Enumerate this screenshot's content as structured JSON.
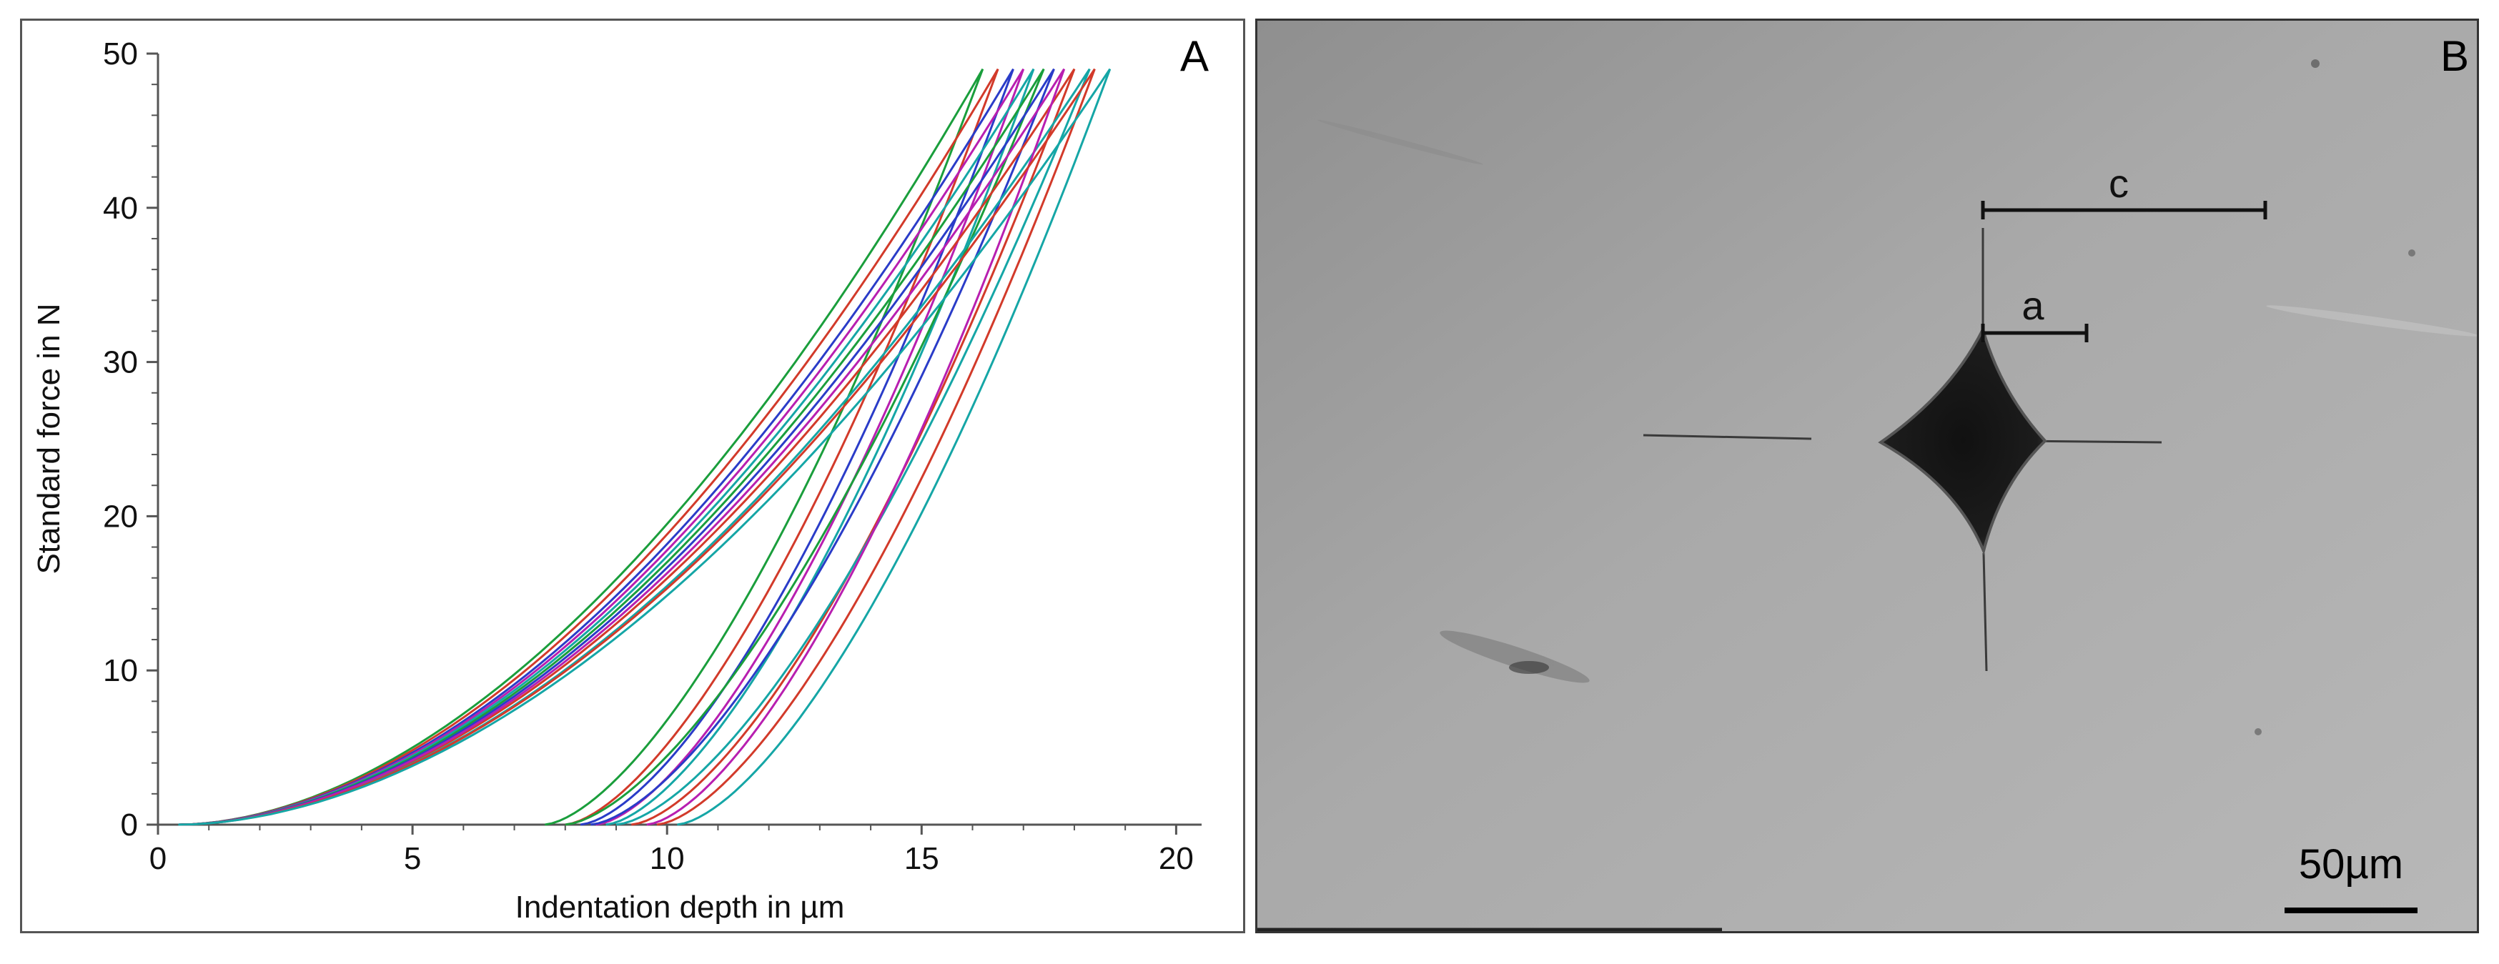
{
  "panels": {
    "a_letter": "A",
    "b_letter": "B"
  },
  "chart_data": {
    "type": "line",
    "xlabel": "Indentation depth in µm",
    "ylabel": "Standard force in N",
    "xlim": [
      0,
      20.5
    ],
    "ylim": [
      0,
      50
    ],
    "xticks": [
      0,
      5,
      10,
      15,
      20
    ],
    "yticks": [
      0,
      10,
      20,
      30,
      40,
      50
    ],
    "grid": false,
    "series": [
      {
        "color": "#1a9e3c",
        "loading_end": 16.2,
        "unloading_end": 7.6,
        "max_force": 49
      },
      {
        "color": "#d23a2a",
        "loading_end": 16.5,
        "unloading_end": 8.0,
        "max_force": 49
      },
      {
        "color": "#2a3cc8",
        "loading_end": 16.8,
        "unloading_end": 8.3,
        "max_force": 49
      },
      {
        "color": "#b81fb0",
        "loading_end": 17.0,
        "unloading_end": 8.6,
        "max_force": 49
      },
      {
        "color": "#15a6a6",
        "loading_end": 17.2,
        "unloading_end": 8.8,
        "max_force": 49
      },
      {
        "color": "#1a9e3c",
        "loading_end": 17.4,
        "unloading_end": 8.0,
        "max_force": 49
      },
      {
        "color": "#2a3cc8",
        "loading_end": 17.6,
        "unloading_end": 8.5,
        "max_force": 49
      },
      {
        "color": "#d23a2a",
        "loading_end": 18.0,
        "unloading_end": 9.3,
        "max_force": 49
      },
      {
        "color": "#15a6a6",
        "loading_end": 18.3,
        "unloading_end": 9.0,
        "max_force": 49
      },
      {
        "color": "#b81fb0",
        "loading_end": 17.8,
        "unloading_end": 9.6,
        "max_force": 49
      },
      {
        "color": "#d23a2a",
        "loading_end": 18.4,
        "unloading_end": 9.8,
        "max_force": 49
      },
      {
        "color": "#15a6a6",
        "loading_end": 18.7,
        "unloading_end": 10.2,
        "max_force": 49
      }
    ]
  },
  "micrograph": {
    "label_a": "a",
    "label_c": "c",
    "scale_bar_text": "50µm"
  }
}
